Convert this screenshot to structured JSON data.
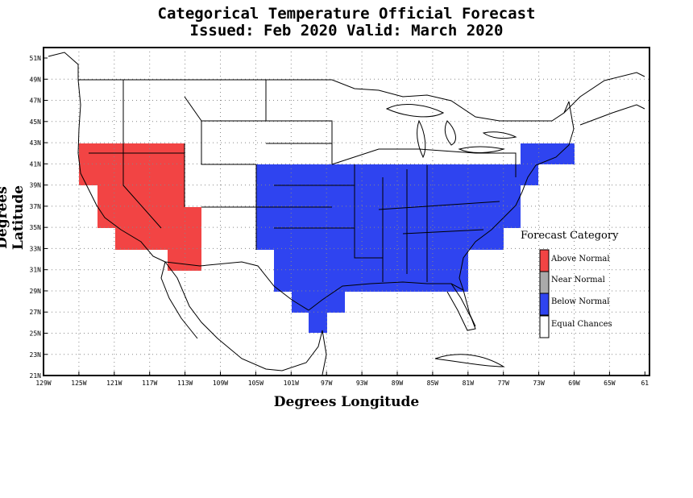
{
  "title_line1": "Categorical Temperature Official Forecast",
  "title_line2": "Issued: Feb 2020 Valid: March 2020",
  "ylabel": "Degrees Latitude",
  "xlabel": "Degrees Longitude",
  "lat_ticks": [
    "51N",
    "49N",
    "47N",
    "45N",
    "43N",
    "41N",
    "39N",
    "37N",
    "35N",
    "33N",
    "31N",
    "29N",
    "27N",
    "25N",
    "23N",
    "21N"
  ],
  "lon_ticks": [
    "129W",
    "125W",
    "121W",
    "117W",
    "113W",
    "109W",
    "105W",
    "101W",
    "97W",
    "93W",
    "89W",
    "85W",
    "81W",
    "77W",
    "73W",
    "69W",
    "65W",
    "61"
  ],
  "legend": {
    "title": "Forecast Category",
    "items": [
      {
        "label": "Above Normal",
        "color": "#f24444"
      },
      {
        "label": "Near Normal",
        "color": "#aaaaaa"
      },
      {
        "label": "Below Normal",
        "color": "#2f44f0"
      },
      {
        "label": "Equal Chances",
        "color": "#ffffff"
      }
    ]
  },
  "colors": {
    "above": "#f24444",
    "below": "#2f44f0"
  }
}
